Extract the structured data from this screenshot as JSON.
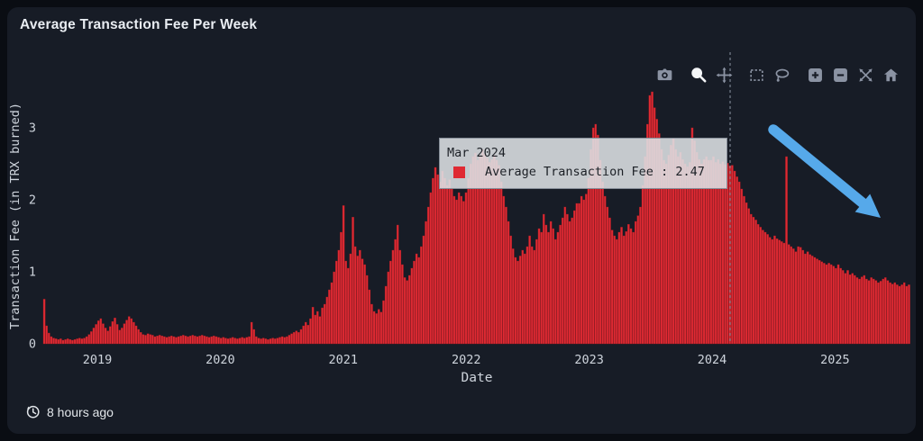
{
  "card": {
    "title": "Average Transaction Fee Per Week",
    "last_updated": "8 hours ago"
  },
  "modebar": {
    "tools": [
      "download-png",
      "zoom",
      "pan",
      "box-select",
      "lasso-select",
      "zoom-in",
      "zoom-out",
      "autoscale",
      "reset-axes"
    ],
    "active_tool": "zoom"
  },
  "tooltip": {
    "date_label": "Mar 2024",
    "series_label": "Average Transaction Fee",
    "value": "2.47",
    "text": "Average Transaction Fee : 2.47",
    "swatch_color": "#df2a33"
  },
  "colors": {
    "bar": "#df2a33",
    "bar_edge": "#9c1b22",
    "arrow": "#56a9ea",
    "page_bg": "#0a0d13",
    "card_bg": "#171c26",
    "axis_text": "#ced4dc",
    "title_text": "#e9edf2",
    "hover_line": "#8b94a3",
    "tooltip_bg": "rgba(222,225,229,0.88)",
    "tooltip_text": "#1c2026"
  },
  "chart_data": {
    "type": "bar",
    "title": "Average Transaction Fee Per Week",
    "xlabel": "Date",
    "ylabel": "Transaction Fee (in TRX burned)",
    "x_ticks": [
      2019,
      2020,
      2021,
      2022,
      2023,
      2024,
      2025
    ],
    "y_ticks": [
      0,
      1,
      2,
      3
    ],
    "ylim": [
      0,
      3.95
    ],
    "x_start": 2018.56,
    "x_span_years": 7.053,
    "grid": false,
    "legend": "none",
    "hover": {
      "index": 291,
      "label": "Mar 2024",
      "value": 2.47
    },
    "annotation": "thick blue arrow pointing down-right over 2024-2025 decline",
    "series": [
      {
        "name": "Average Transaction Fee",
        "unit": "TRX burned per week",
        "values": [
          0.62,
          0.25,
          0.15,
          0.1,
          0.08,
          0.07,
          0.06,
          0.07,
          0.05,
          0.06,
          0.07,
          0.06,
          0.05,
          0.06,
          0.07,
          0.08,
          0.07,
          0.08,
          0.1,
          0.13,
          0.17,
          0.22,
          0.27,
          0.32,
          0.35,
          0.28,
          0.22,
          0.18,
          0.24,
          0.31,
          0.36,
          0.27,
          0.19,
          0.22,
          0.28,
          0.33,
          0.38,
          0.35,
          0.3,
          0.25,
          0.2,
          0.16,
          0.13,
          0.12,
          0.14,
          0.13,
          0.12,
          0.1,
          0.11,
          0.12,
          0.11,
          0.1,
          0.09,
          0.1,
          0.11,
          0.1,
          0.09,
          0.1,
          0.11,
          0.12,
          0.11,
          0.1,
          0.11,
          0.12,
          0.11,
          0.1,
          0.11,
          0.12,
          0.11,
          0.1,
          0.09,
          0.1,
          0.11,
          0.1,
          0.09,
          0.08,
          0.09,
          0.08,
          0.07,
          0.08,
          0.09,
          0.08,
          0.07,
          0.08,
          0.09,
          0.08,
          0.09,
          0.1,
          0.3,
          0.2,
          0.1,
          0.08,
          0.07,
          0.08,
          0.07,
          0.06,
          0.07,
          0.08,
          0.07,
          0.08,
          0.09,
          0.1,
          0.09,
          0.1,
          0.12,
          0.14,
          0.16,
          0.18,
          0.16,
          0.2,
          0.25,
          0.3,
          0.26,
          0.35,
          0.51,
          0.4,
          0.45,
          0.38,
          0.5,
          0.55,
          0.65,
          0.75,
          0.85,
          1.0,
          1.15,
          1.3,
          1.55,
          1.92,
          1.15,
          1.05,
          1.25,
          1.76,
          1.35,
          1.22,
          1.3,
          1.18,
          1.1,
          0.95,
          0.75,
          0.55,
          0.45,
          0.42,
          0.48,
          0.44,
          0.6,
          0.8,
          1.0,
          1.15,
          1.3,
          1.45,
          1.65,
          1.3,
          1.1,
          0.92,
          0.88,
          0.95,
          1.05,
          1.15,
          1.25,
          1.2,
          1.35,
          1.5,
          1.7,
          1.9,
          2.1,
          2.3,
          2.45,
          2.35,
          2.25,
          2.4,
          2.3,
          2.2,
          2.28,
          2.15,
          2.05,
          2.0,
          2.1,
          2.05,
          1.98,
          2.1,
          2.3,
          2.5,
          2.6,
          2.65,
          2.55,
          2.62,
          2.7,
          2.64,
          2.58,
          2.52,
          2.56,
          2.62,
          2.55,
          2.48,
          2.25,
          2.05,
          1.9,
          1.7,
          1.5,
          1.32,
          1.2,
          1.15,
          1.22,
          1.3,
          1.25,
          1.35,
          1.5,
          1.35,
          1.3,
          1.45,
          1.6,
          1.55,
          1.8,
          1.65,
          1.55,
          1.7,
          1.6,
          1.45,
          1.55,
          1.65,
          1.75,
          1.9,
          1.8,
          1.7,
          1.75,
          1.85,
          1.95,
          1.95,
          2.05,
          2.0,
          2.08,
          2.3,
          2.7,
          3.0,
          3.05,
          2.9,
          2.55,
          2.25,
          2.05,
          1.9,
          1.75,
          1.58,
          1.5,
          1.45,
          1.55,
          1.62,
          1.5,
          1.56,
          1.66,
          1.6,
          1.55,
          1.7,
          1.78,
          1.9,
          2.2,
          2.6,
          3.05,
          3.45,
          3.5,
          3.28,
          3.12,
          2.92,
          2.7,
          2.55,
          2.5,
          2.62,
          2.76,
          2.85,
          2.7,
          2.6,
          2.66,
          2.56,
          2.5,
          2.46,
          2.52,
          3.0,
          2.82,
          2.66,
          2.56,
          2.5,
          2.56,
          2.6,
          2.55,
          2.55,
          2.6,
          2.52,
          2.56,
          2.5,
          2.53,
          2.49,
          2.51,
          2.47,
          2.48,
          2.4,
          2.32,
          2.25,
          2.15,
          2.05,
          1.96,
          1.88,
          1.8,
          1.76,
          1.72,
          1.66,
          1.62,
          1.58,
          1.55,
          1.52,
          1.48,
          1.45,
          1.5,
          1.46,
          1.44,
          1.42,
          1.4,
          2.6,
          1.38,
          1.35,
          1.32,
          1.28,
          1.35,
          1.34,
          1.3,
          1.25,
          1.28,
          1.24,
          1.22,
          1.2,
          1.18,
          1.16,
          1.14,
          1.12,
          1.1,
          1.12,
          1.1,
          1.08,
          1.05,
          1.1,
          1.05,
          1.02,
          0.98,
          1.02,
          0.96,
          0.98,
          0.95,
          0.92,
          0.9,
          0.93,
          0.95,
          0.9,
          0.88,
          0.92,
          0.9,
          0.88,
          0.85,
          0.87,
          0.9,
          0.92,
          0.88,
          0.85,
          0.83,
          0.85,
          0.82,
          0.8,
          0.82,
          0.85,
          0.8,
          0.82
        ]
      }
    ]
  }
}
